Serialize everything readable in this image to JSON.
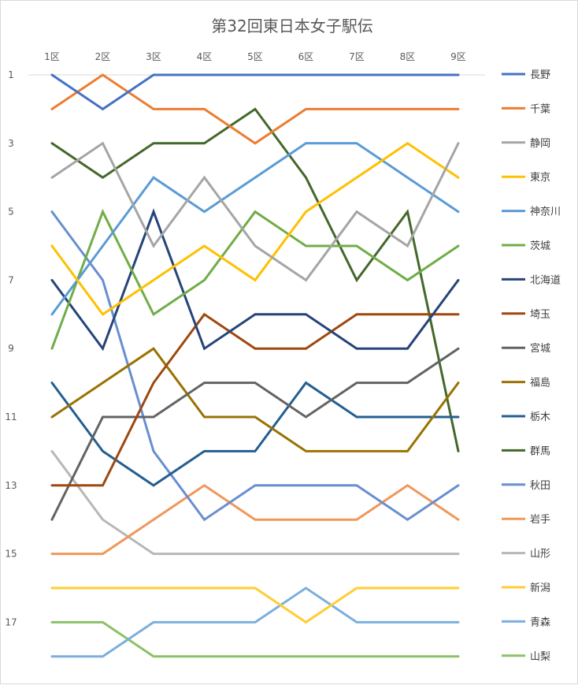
{
  "chart_data": {
    "type": "line",
    "title": "第32回東日本女子駅伝",
    "categories": [
      "1区",
      "2区",
      "3区",
      "4区",
      "5区",
      "6区",
      "7区",
      "8区",
      "9区"
    ],
    "y_axis": {
      "reversed": true,
      "range": [
        1,
        18
      ],
      "tick_labels": [
        "1",
        "3",
        "5",
        "7",
        "9",
        "11",
        "13",
        "15",
        "17"
      ]
    },
    "grid": "horizontal line at rank 1 only",
    "legend_position": "right",
    "series": [
      {
        "name": "長野",
        "color": "#4472C4",
        "values": [
          1,
          2,
          1,
          1,
          1,
          1,
          1,
          1,
          1
        ]
      },
      {
        "name": "千葉",
        "color": "#ED7D31",
        "values": [
          2,
          1,
          2,
          2,
          3,
          2,
          2,
          2,
          2
        ]
      },
      {
        "name": "静岡",
        "color": "#A5A5A5",
        "values": [
          4,
          3,
          6,
          4,
          6,
          7,
          5,
          6,
          3
        ]
      },
      {
        "name": "東京",
        "color": "#FFC000",
        "values": [
          6,
          8,
          7,
          6,
          7,
          5,
          4,
          3,
          4
        ]
      },
      {
        "name": "神奈川",
        "color": "#5B9BD5",
        "values": [
          8,
          6,
          4,
          5,
          4,
          3,
          3,
          4,
          5
        ]
      },
      {
        "name": "茨城",
        "color": "#70AD47",
        "values": [
          9,
          5,
          8,
          7,
          5,
          6,
          6,
          7,
          6
        ]
      },
      {
        "name": "北海道",
        "color": "#264478",
        "values": [
          7,
          9,
          5,
          9,
          8,
          8,
          9,
          9,
          7
        ]
      },
      {
        "name": "埼玉",
        "color": "#9E480E",
        "values": [
          13,
          13,
          10,
          8,
          9,
          9,
          8,
          8,
          8
        ]
      },
      {
        "name": "宮城",
        "color": "#636363",
        "values": [
          14,
          11,
          11,
          10,
          10,
          11,
          10,
          10,
          9
        ]
      },
      {
        "name": "福島",
        "color": "#997300",
        "values": [
          11,
          10,
          9,
          11,
          11,
          12,
          12,
          12,
          10
        ]
      },
      {
        "name": "栃木",
        "color": "#255E91",
        "values": [
          10,
          12,
          13,
          12,
          12,
          10,
          11,
          11,
          11
        ]
      },
      {
        "name": "群馬",
        "color": "#43682B",
        "values": [
          3,
          4,
          3,
          3,
          2,
          4,
          7,
          5,
          12
        ]
      },
      {
        "name": "秋田",
        "color": "#698ED0",
        "values": [
          5,
          7,
          12,
          14,
          13,
          13,
          13,
          14,
          13
        ]
      },
      {
        "name": "岩手",
        "color": "#F1975A",
        "values": [
          15,
          15,
          14,
          13,
          14,
          14,
          14,
          13,
          14
        ]
      },
      {
        "name": "山形",
        "color": "#B7B7B7",
        "values": [
          12,
          14,
          15,
          15,
          15,
          15,
          15,
          15,
          15
        ]
      },
      {
        "name": "新潟",
        "color": "#FFCD33",
        "values": [
          16,
          16,
          16,
          16,
          16,
          17,
          16,
          16,
          16
        ]
      },
      {
        "name": "青森",
        "color": "#7CAFDD",
        "values": [
          18,
          18,
          17,
          17,
          17,
          16,
          17,
          17,
          17
        ]
      },
      {
        "name": "山梨",
        "color": "#8CC168",
        "values": [
          17,
          17,
          18,
          18,
          18,
          18,
          18,
          18,
          18
        ]
      }
    ]
  }
}
